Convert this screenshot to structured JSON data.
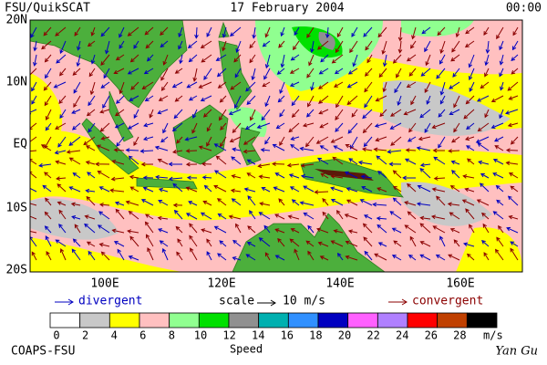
{
  "header": {
    "left": "FSU/QuikSCAT",
    "center": "17 February 2004",
    "right": "00:00"
  },
  "map": {
    "lat_labels": [
      "20N",
      "10N",
      "EQ",
      "10S",
      "20S"
    ],
    "lon_labels": [
      "100E",
      "120E",
      "140E",
      "160E"
    ]
  },
  "legend": {
    "divergent": "divergent",
    "scale": "scale",
    "scale_value": "10 m/s",
    "convergent": "convergent"
  },
  "colorbar": {
    "labels": [
      0,
      2,
      4,
      6,
      8,
      10,
      12,
      14,
      16,
      18,
      20,
      22,
      24,
      26,
      28
    ],
    "unit": "m/s",
    "title": "Speed",
    "colors": [
      "#ffffff",
      "#c8c8c8",
      "#ffff00",
      "#ffc0c0",
      "#90ff90",
      "#00e000",
      "#909090",
      "#00b0b0",
      "#3090ff",
      "#0000c0",
      "#ff60ff",
      "#b080ff",
      "#ff0000",
      "#c04000",
      "#000000"
    ]
  },
  "footer": {
    "left": "COAPS-FSU",
    "right": "Yan Gu"
  }
}
